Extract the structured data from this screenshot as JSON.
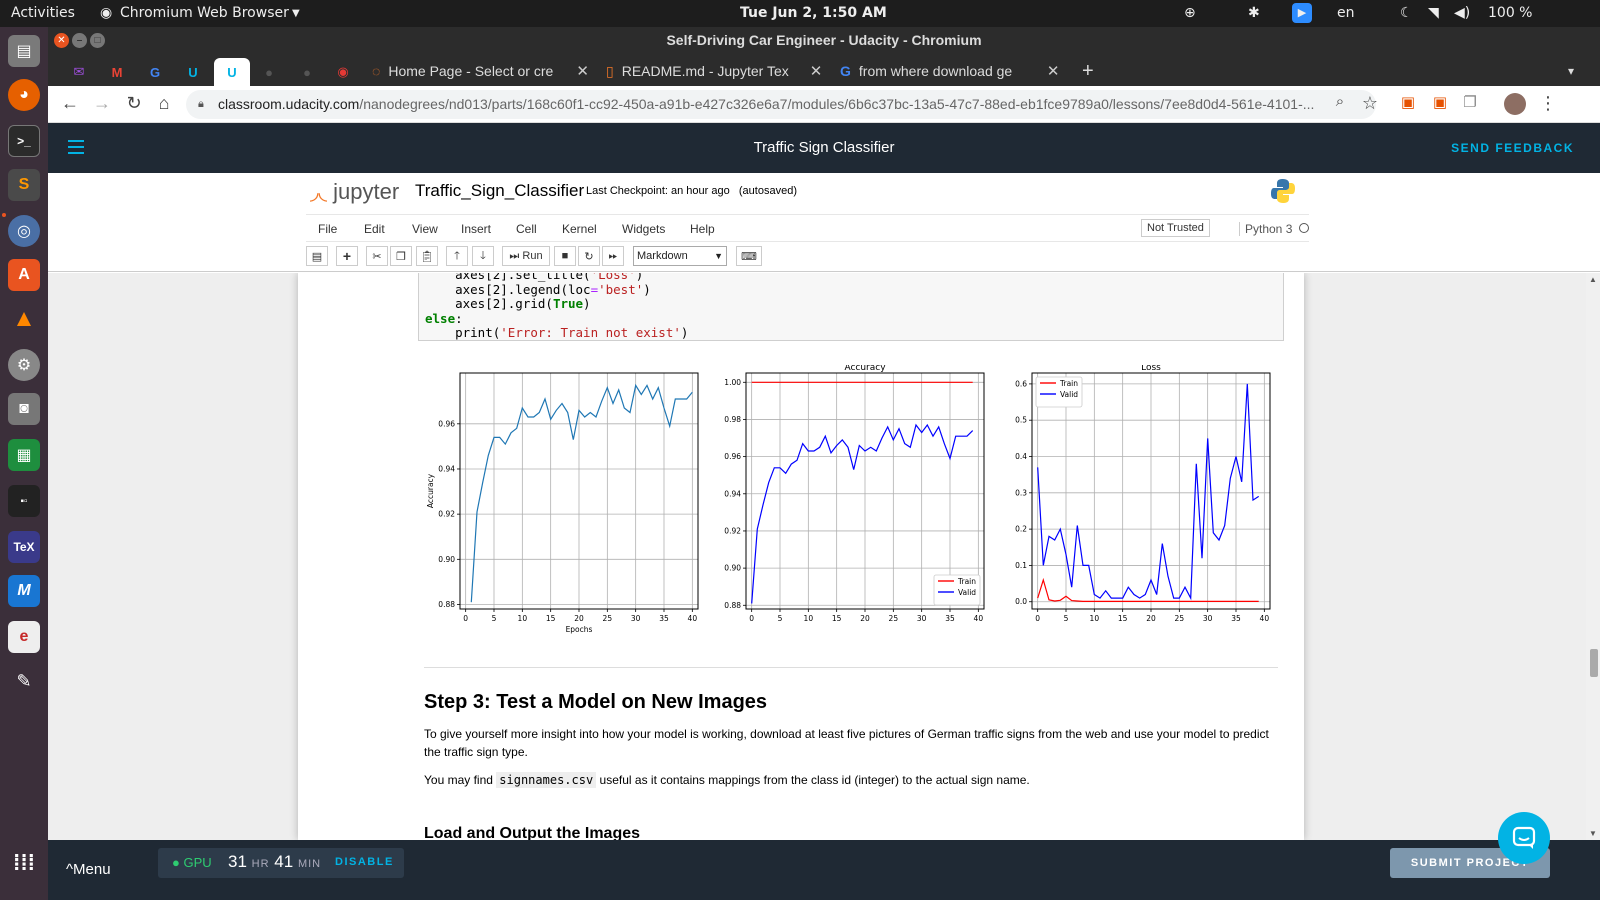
{
  "topbar": {
    "activities": "Activities",
    "app": "Chromium Web Browser",
    "clock": "Tue Jun  2,  1:50 AM",
    "lang": "en",
    "battery": "100 %"
  },
  "window": {
    "title": "Self-Driving Car Engineer - Udacity - Chromium"
  },
  "tabs": [
    {
      "title": "Home Page - Select or cre"
    },
    {
      "title": "README.md - Jupyter Tex"
    },
    {
      "title": "from where download ge"
    }
  ],
  "address": {
    "host": "classroom.udacity.com",
    "path": "/nanodegrees/nd013/parts/168c60f1-cc92-450a-a91b-e427c326e6a7/modules/6b6c37bc-13a5-47c7-88ed-eb1fce9789a0/lessons/7ee8d0d4-561e-4101-..."
  },
  "udacity": {
    "title": "Traffic Sign Classifier",
    "feedback": "SEND FEEDBACK"
  },
  "jupyter": {
    "logo": "jupyter",
    "notebook": "Traffic_Sign_Classifier",
    "checkpoint": "Last Checkpoint: an hour ago",
    "autosaved": "(autosaved)",
    "menus": [
      "File",
      "Edit",
      "View",
      "Insert",
      "Cell",
      "Kernel",
      "Widgets",
      "Help"
    ],
    "trusted": "Not Trusted",
    "kernel": "Python 3",
    "run": "Run",
    "celltype": "Markdown"
  },
  "code": {
    "line1a": "    axes[2].set_title(",
    "line1b": "'Loss'",
    "line1c": ")",
    "line2a": "    axes[2].legend(loc",
    "line2b": "=",
    "line2c": "'best'",
    "line2d": ")",
    "line3a": "    axes[2].grid(",
    "line3b": "True",
    "line3c": ")",
    "line4": "else",
    "line4b": ":",
    "line5a": "    print(",
    "line5b": "'Error: Train not exist'",
    "line5c": ")"
  },
  "chart_data": [
    {
      "type": "line",
      "title": "",
      "xlabel": "Epochs",
      "ylabel": "Accuracy",
      "xlim": [
        -1,
        41
      ],
      "ylim": [
        0.878,
        0.9825
      ],
      "xticks": [
        0,
        5,
        10,
        15,
        20,
        25,
        30,
        35,
        40
      ],
      "yticks": [
        0.88,
        0.9,
        0.92,
        0.94,
        0.96
      ],
      "grid": true,
      "series": [
        {
          "color": "#1f77b4",
          "x": [
            1,
            2,
            3,
            4,
            5,
            6,
            7,
            8,
            9,
            10,
            11,
            12,
            13,
            14,
            15,
            16,
            17,
            18,
            19,
            20,
            21,
            22,
            23,
            24,
            25,
            26,
            27,
            28,
            29,
            30,
            31,
            32,
            33,
            34,
            35,
            36,
            37,
            38,
            39,
            40
          ],
          "y": [
            0.881,
            0.921,
            0.934,
            0.946,
            0.954,
            0.954,
            0.951,
            0.956,
            0.958,
            0.967,
            0.963,
            0.963,
            0.965,
            0.971,
            0.962,
            0.966,
            0.969,
            0.965,
            0.953,
            0.966,
            0.963,
            0.965,
            0.963,
            0.97,
            0.976,
            0.969,
            0.975,
            0.967,
            0.965,
            0.977,
            0.973,
            0.977,
            0.971,
            0.976,
            0.967,
            0.959,
            0.971,
            0.971,
            0.971,
            0.974
          ]
        }
      ]
    },
    {
      "type": "line",
      "title": "Accuracy",
      "xlabel": "",
      "ylabel": "",
      "xlim": [
        -1,
        41
      ],
      "ylim": [
        0.878,
        1.005
      ],
      "xticks": [
        0,
        5,
        10,
        15,
        20,
        25,
        30,
        35,
        40
      ],
      "yticks": [
        0.88,
        0.9,
        0.92,
        0.94,
        0.96,
        0.98,
        1.0
      ],
      "grid": true,
      "legend": "lower right",
      "series": [
        {
          "name": "Train",
          "color": "#ff0000",
          "x": [
            0,
            39
          ],
          "y": [
            1.0,
            1.0
          ]
        },
        {
          "name": "Valid",
          "color": "#0000ff",
          "x": [
            0,
            1,
            2,
            3,
            4,
            5,
            6,
            7,
            8,
            9,
            10,
            11,
            12,
            13,
            14,
            15,
            16,
            17,
            18,
            19,
            20,
            21,
            22,
            23,
            24,
            25,
            26,
            27,
            28,
            29,
            30,
            31,
            32,
            33,
            34,
            35,
            36,
            37,
            38,
            39
          ],
          "y": [
            0.881,
            0.921,
            0.934,
            0.946,
            0.954,
            0.954,
            0.951,
            0.956,
            0.958,
            0.967,
            0.963,
            0.963,
            0.965,
            0.971,
            0.962,
            0.966,
            0.969,
            0.965,
            0.953,
            0.966,
            0.963,
            0.965,
            0.963,
            0.97,
            0.976,
            0.969,
            0.975,
            0.967,
            0.965,
            0.977,
            0.973,
            0.977,
            0.971,
            0.976,
            0.967,
            0.959,
            0.971,
            0.971,
            0.971,
            0.974
          ]
        }
      ]
    },
    {
      "type": "line",
      "title": "Loss",
      "xlabel": "",
      "ylabel": "",
      "xlim": [
        -1,
        41
      ],
      "ylim": [
        -0.02,
        0.63
      ],
      "xticks": [
        0,
        5,
        10,
        15,
        20,
        25,
        30,
        35,
        40
      ],
      "yticks": [
        0.0,
        0.1,
        0.2,
        0.3,
        0.4,
        0.5,
        0.6
      ],
      "grid": true,
      "legend": "upper left",
      "series": [
        {
          "name": "Train",
          "color": "#ff0000",
          "x": [
            0,
            1,
            2,
            3,
            4,
            5,
            6,
            7,
            8,
            9,
            10,
            15,
            20,
            25,
            30,
            35,
            39
          ],
          "y": [
            0.01,
            0.06,
            0.005,
            0.002,
            0.004,
            0.015,
            0.003,
            0.002,
            0.001,
            0.001,
            0.001,
            0.001,
            0.001,
            0.001,
            0.001,
            0.001,
            0.001
          ]
        },
        {
          "name": "Valid",
          "color": "#0000ff",
          "x": [
            0,
            1,
            2,
            3,
            4,
            5,
            6,
            7,
            8,
            9,
            10,
            11,
            12,
            13,
            14,
            15,
            16,
            17,
            18,
            19,
            20,
            21,
            22,
            23,
            24,
            25,
            26,
            27,
            28,
            29,
            30,
            31,
            32,
            33,
            34,
            35,
            36,
            37,
            38,
            39
          ],
          "y": [
            0.37,
            0.1,
            0.18,
            0.17,
            0.2,
            0.13,
            0.04,
            0.21,
            0.1,
            0.1,
            0.02,
            0.01,
            0.03,
            0.01,
            0.01,
            0.01,
            0.04,
            0.02,
            0.01,
            0.02,
            0.06,
            0.02,
            0.16,
            0.07,
            0.01,
            0.01,
            0.04,
            0.01,
            0.38,
            0.12,
            0.45,
            0.19,
            0.17,
            0.21,
            0.34,
            0.4,
            0.33,
            0.6,
            0.28,
            0.29
          ]
        }
      ]
    }
  ],
  "content": {
    "step3": "Step 3: Test a Model on New Images",
    "para1": "To give yourself more insight into how your model is working, download at least five pictures of German traffic signs from the web and use your model to predict the traffic sign type.",
    "para2a": "You may find ",
    "para2code": "signnames.csv",
    "para2b": " useful as it contains mappings from the class id (integer) to the actual sign name.",
    "load": "Load and Output the Images"
  },
  "bottom": {
    "menu": "Menu",
    "gpu": "GPU",
    "hours": "31",
    "hr": "HR",
    "mins": "41",
    "min": "MIN",
    "disable": "DISABLE",
    "submit": "SUBMIT PROJECT"
  }
}
